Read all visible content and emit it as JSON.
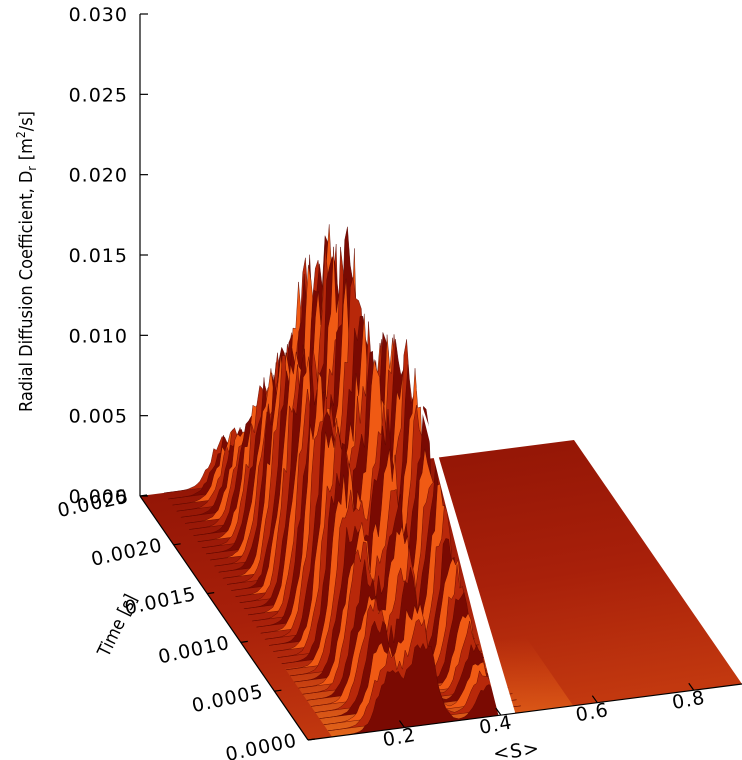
{
  "chart_data": {
    "type": "surface",
    "zlabel": "Radial Diffusion Coefficient, D",
    "zlabel_sub": "r",
    "zlabel_unit": "[m",
    "zlabel_unit_sup": "2",
    "zlabel_unit_end": "/s]",
    "ylabel": "Time",
    "ylabel_unit": "[s]",
    "xlabel": "<S>",
    "z_ticks": [
      "0.000",
      "0.005",
      "0.010",
      "0.015",
      "0.020",
      "0.025",
      "0.030"
    ],
    "y_ticks": [
      "0.0000",
      "0.0005",
      "0.0010",
      "0.0015",
      "0.0020",
      "0.0025"
    ],
    "x_ticks": [
      "0.2",
      "0.4",
      "0.6",
      "0.8"
    ],
    "zlim": [
      0,
      0.03
    ],
    "ylim": [
      0,
      0.0025
    ],
    "xlim": [
      0,
      0.9
    ],
    "peaks": [
      {
        "s": 0.17,
        "t": 0.0012,
        "value": 0.0142,
        "width": 0.035,
        "extent": 0.0011
      },
      {
        "s": 0.24,
        "t": 0.0012,
        "value": 0.0215,
        "width": 0.035,
        "extent": 0.0011
      },
      {
        "s": 0.37,
        "t": 0.0013,
        "value": 0.0146,
        "width": 0.03,
        "extent": 0.001
      }
    ],
    "colors": {
      "dark": "#7a0a02",
      "mid": "#b8280a",
      "bright": "#f05a14",
      "floor": "#a31808"
    }
  }
}
